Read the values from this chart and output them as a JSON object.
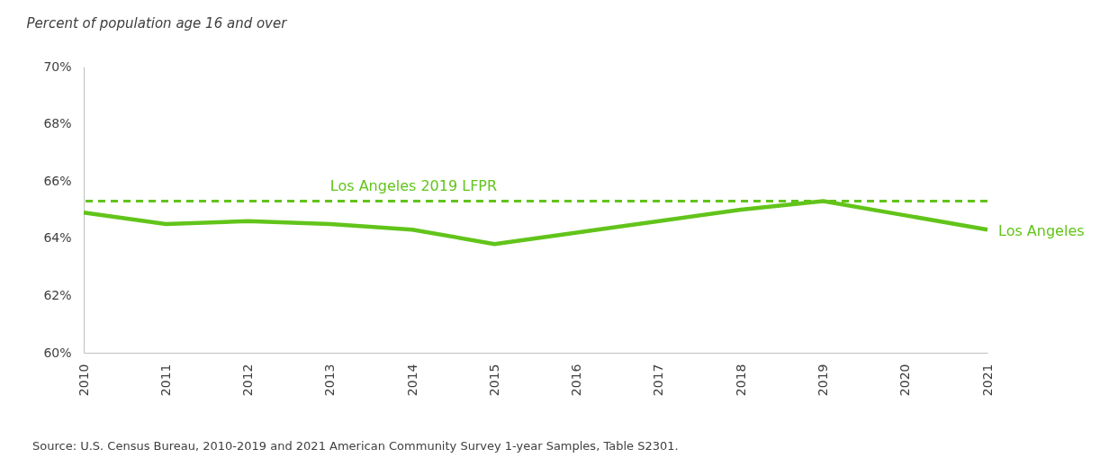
{
  "chart_data": {
    "type": "line",
    "ylabel": "Percent of population age 16 and over",
    "categories": [
      "2010",
      "2011",
      "2012",
      "2013",
      "2014",
      "2015",
      "2016",
      "2017",
      "2018",
      "2019",
      "2020",
      "2021"
    ],
    "series": [
      {
        "name": "Los Angeles",
        "color": "#62c41a",
        "values": [
          64.9,
          64.5,
          64.6,
          64.5,
          64.3,
          63.8,
          64.2,
          64.6,
          65.0,
          65.3,
          64.8,
          64.3
        ]
      }
    ],
    "ylim": [
      60,
      70
    ],
    "yticks": [
      {
        "value": 60,
        "label": "60%"
      },
      {
        "value": 62,
        "label": "62%"
      },
      {
        "value": 64,
        "label": "64%"
      },
      {
        "value": 66,
        "label": "66%"
      },
      {
        "value": 68,
        "label": "68%"
      },
      {
        "value": 70,
        "label": "70%"
      }
    ],
    "ref_lines": [
      {
        "axis": "y",
        "value": 65.3,
        "label": "Los Angeles 2019 LFPR",
        "color": "#62c41a",
        "line_style": "dashed"
      }
    ],
    "grid": false,
    "annotations": [
      "Source: U.S. Census Bureau, 2010-2019 and 2021 American Community Survey 1-year Samples, Table S2301."
    ]
  }
}
